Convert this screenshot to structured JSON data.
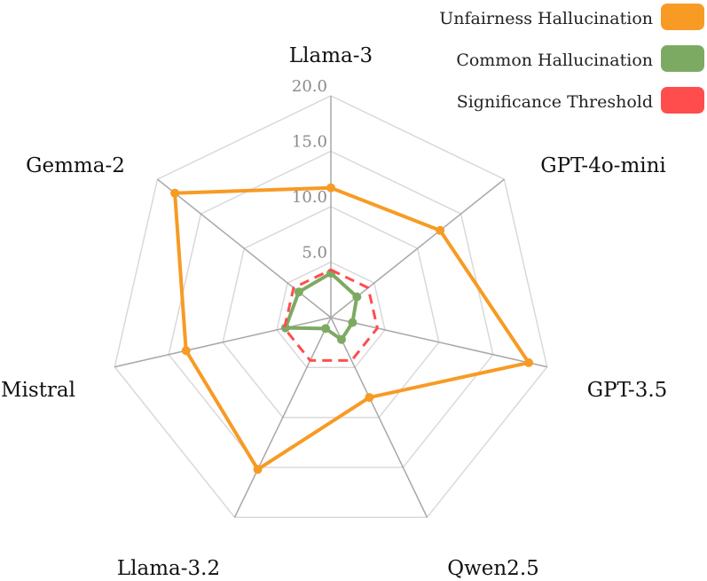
{
  "chart_data": {
    "type": "radar",
    "title": "",
    "axes": [
      "Llama-3",
      "GPT-4o-mini",
      "GPT-3.5",
      "Qwen2.5",
      "Llama-3.2",
      "Mistral",
      "Gemma-2"
    ],
    "range": [
      0,
      20
    ],
    "ticks": [
      5,
      10,
      15,
      20
    ],
    "tick_labels": [
      "5.0",
      "10.0",
      "15.0",
      "20.0"
    ],
    "grid": true,
    "legend_position": "top-right",
    "series": [
      {
        "name": "Unfairness Hallucination",
        "color": "#F79B24",
        "style": "solid",
        "values": [
          11.7,
          12.6,
          18.3,
          8.0,
          15.2,
          13.4,
          18.0
        ]
      },
      {
        "name": "Common Hallucination",
        "color": "#7DAA63",
        "style": "solid",
        "values": [
          4.0,
          3.0,
          2.0,
          2.2,
          1.1,
          4.2,
          3.7
        ]
      },
      {
        "name": "Significance Threshold",
        "color": "#FF4D4D",
        "style": "dashed",
        "values": [
          4.3,
          4.3,
          4.3,
          4.3,
          4.3,
          4.3,
          4.3
        ]
      }
    ]
  }
}
